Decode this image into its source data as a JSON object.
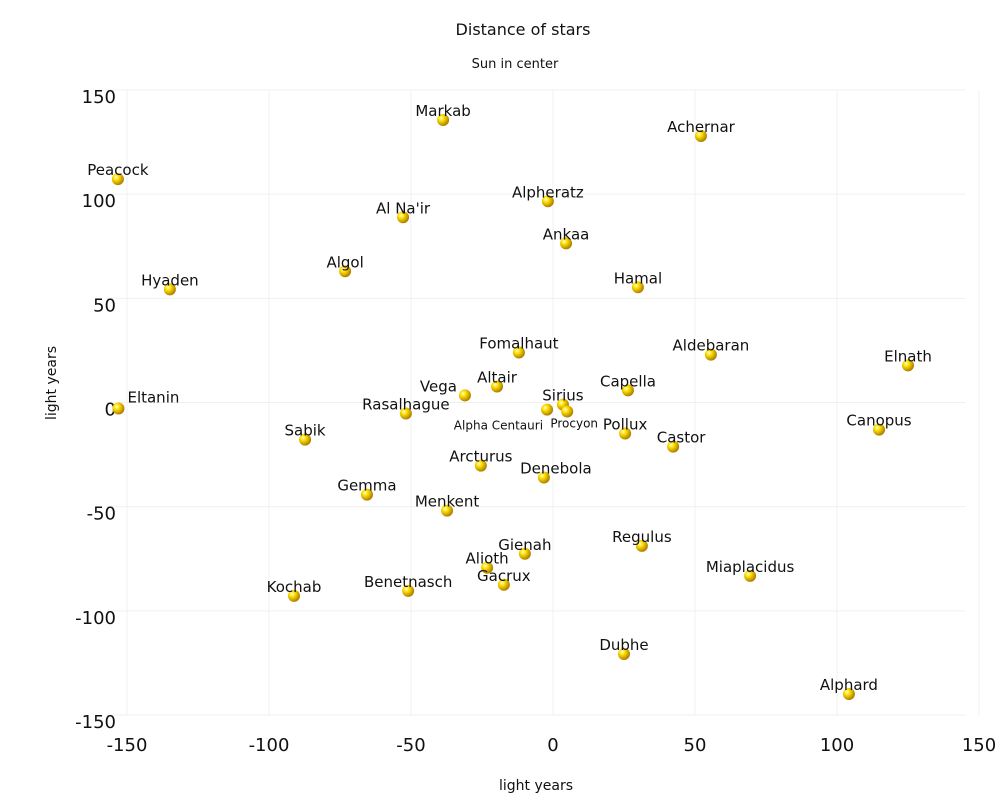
{
  "chart_data": {
    "type": "scatter",
    "title": "Distance of stars",
    "subtitle": "Sun in center",
    "xlabel": "light years",
    "ylabel": "light years",
    "xlim": [
      -150,
      150
    ],
    "ylim": [
      -150,
      150
    ],
    "xticks": [
      "-150",
      "-100",
      "-50",
      "0",
      "50",
      "100",
      "150"
    ],
    "yticks": [
      "150",
      "100",
      "50",
      "0",
      "-50",
      "-100",
      "-150"
    ],
    "grid": true,
    "marker_color": "#f5d000",
    "points": [
      {
        "name": "Markab",
        "x": -38.7,
        "y": 135.6
      },
      {
        "name": "Achernar",
        "x": 52.1,
        "y": 127.9
      },
      {
        "name": "Peacock",
        "x": -153.2,
        "y": 107.2
      },
      {
        "name": "Alpheratz",
        "x": -1.8,
        "y": 96.6
      },
      {
        "name": "Al Na'ir",
        "x": -52.8,
        "y": 88.9
      },
      {
        "name": "Ankaa",
        "x": 4.6,
        "y": 76.4
      },
      {
        "name": "Algol",
        "x": -73.2,
        "y": 63.0
      },
      {
        "name": "Hyaden",
        "x": -134.9,
        "y": 54.3
      },
      {
        "name": "Hamal",
        "x": 29.9,
        "y": 55.3
      },
      {
        "name": "Fomalhaut",
        "x": -12.0,
        "y": 24.0
      },
      {
        "name": "Aldebaran",
        "x": 55.6,
        "y": 23.0
      },
      {
        "name": "Elnath",
        "x": 125.0,
        "y": 17.8
      },
      {
        "name": "Altair",
        "x": -19.7,
        "y": 7.7
      },
      {
        "name": "Capella",
        "x": 26.4,
        "y": 5.8
      },
      {
        "name": "Vega",
        "x": -31.0,
        "y": 3.4
      },
      {
        "name": "Sirius",
        "x": 3.5,
        "y": -1.0
      },
      {
        "name": "Eltanin",
        "x": -153.0,
        "y": -2.9
      },
      {
        "name": "Alpha Centauri",
        "x": -2.1,
        "y": -3.4
      },
      {
        "name": "Procyon",
        "x": 5.0,
        "y": -4.3
      },
      {
        "name": "Rasalhague",
        "x": -51.8,
        "y": -5.3
      },
      {
        "name": "Canopus",
        "x": 114.8,
        "y": -13.0
      },
      {
        "name": "Pollux",
        "x": 25.4,
        "y": -14.9
      },
      {
        "name": "Sabik",
        "x": -87.3,
        "y": -17.8
      },
      {
        "name": "Castor",
        "x": 42.3,
        "y": -21.2
      },
      {
        "name": "Arcturus",
        "x": -25.4,
        "y": -30.3
      },
      {
        "name": "Denebola",
        "x": -3.2,
        "y": -36.0
      },
      {
        "name": "Gemma",
        "x": -65.5,
        "y": -44.2
      },
      {
        "name": "Menkent",
        "x": -37.3,
        "y": -51.9
      },
      {
        "name": "Regulus",
        "x": 31.3,
        "y": -68.8
      },
      {
        "name": "Gienah",
        "x": -9.9,
        "y": -72.6
      },
      {
        "name": "Alioth",
        "x": -23.2,
        "y": -79.3
      },
      {
        "name": "Miaplacidus",
        "x": 69.4,
        "y": -83.2
      },
      {
        "name": "Gacrux",
        "x": -17.3,
        "y": -87.5
      },
      {
        "name": "Benetnasch",
        "x": -51.0,
        "y": -90.4
      },
      {
        "name": "Kochab",
        "x": -91.2,
        "y": -92.8
      },
      {
        "name": "Dubhe",
        "x": 25.0,
        "y": -120.7
      },
      {
        "name": "Alphard",
        "x": 104.2,
        "y": -139.9
      }
    ]
  }
}
